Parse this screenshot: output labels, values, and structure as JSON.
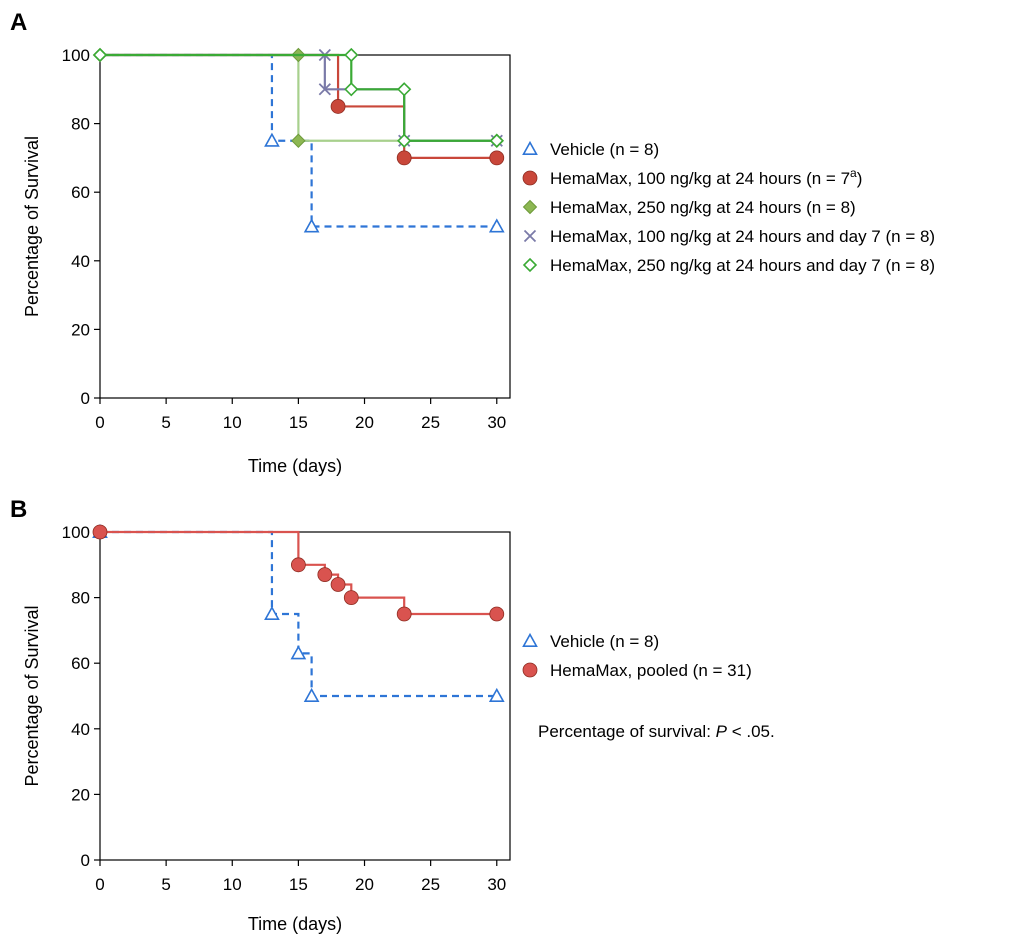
{
  "figure": {
    "colors": {
      "vehicle": "#2e75d6",
      "hm100_24": "#c9473a",
      "hm250_24": "#a8d08d",
      "hm100_24_d7": "#7a7aa8",
      "hm250_24_d7": "#3aaa35",
      "hm_pooled": "#d9534f",
      "diamond_fill_green": "#8db753"
    },
    "note": {
      "prefix": "Percentage of survival: ",
      "italic": "P",
      "suffix": " < .05."
    }
  },
  "chart_data": [
    {
      "panel": "A",
      "type": "line",
      "subtype": "kaplan-meier step",
      "xlabel": "Time (days)",
      "ylabel": "Percentage of Survival",
      "xlim": [
        0,
        31
      ],
      "ylim": [
        0,
        100
      ],
      "xticks": [
        0,
        5,
        10,
        15,
        20,
        25,
        30
      ],
      "yticks": [
        0,
        20,
        40,
        60,
        80,
        100
      ],
      "x_tick_labels": [
        "0",
        "5",
        "10",
        "15",
        "20",
        "25",
        "30"
      ],
      "y_tick_labels": [
        "0",
        "20",
        "40",
        "60",
        "80",
        "100"
      ],
      "grid": false,
      "legend_position": "right",
      "series": [
        {
          "name": "Vehicle (n = 8)",
          "legend_sup": "",
          "key": "vehicle",
          "dashed": true,
          "marker": "triangle-open",
          "steps": [
            [
              0,
              100
            ],
            [
              13,
              75
            ],
            [
              16,
              50
            ],
            [
              30,
              50
            ]
          ],
          "markers": [
            [
              13,
              75
            ],
            [
              16,
              50
            ],
            [
              30,
              50
            ]
          ]
        },
        {
          "name": "HemaMax, 100 ng/kg at 24 hours (n = 7",
          "legend_sup": "a",
          "legend_suffix": ")",
          "key": "hm100_24",
          "dashed": false,
          "marker": "circle-filled",
          "steps": [
            [
              0,
              100
            ],
            [
              18,
              85
            ],
            [
              23,
              70
            ],
            [
              30,
              70
            ]
          ],
          "markers": [
            [
              18,
              85
            ],
            [
              23,
              70
            ],
            [
              30,
              70
            ]
          ]
        },
        {
          "name": "HemaMax, 250 ng/kg at 24 hours (n = 8)",
          "legend_sup": "",
          "key": "hm250_24",
          "dashed": false,
          "marker": "diamond-filled",
          "steps": [
            [
              0,
              100
            ],
            [
              15,
              75
            ],
            [
              30,
              75
            ]
          ],
          "markers": [
            [
              0,
              100
            ],
            [
              15,
              100
            ],
            [
              15,
              75
            ],
            [
              30,
              75
            ]
          ]
        },
        {
          "name": "HemaMax, 100 ng/kg at 24 hours and day 7 (n = 8)",
          "legend_sup": "",
          "key": "hm100_24_d7",
          "dashed": false,
          "marker": "x",
          "steps": [
            [
              0,
              100
            ],
            [
              17,
              90
            ],
            [
              23,
              75
            ],
            [
              30,
              75
            ]
          ],
          "markers": [
            [
              17,
              100
            ],
            [
              17,
              90
            ],
            [
              23,
              75
            ],
            [
              30,
              75
            ]
          ]
        },
        {
          "name": "HemaMax, 250 ng/kg at 24 hours and day 7 (n = 8)",
          "legend_sup": "",
          "key": "hm250_24_d7",
          "dashed": false,
          "marker": "diamond-open",
          "steps": [
            [
              0,
              100
            ],
            [
              19,
              90
            ],
            [
              23,
              75
            ],
            [
              30,
              75
            ]
          ],
          "markers": [
            [
              0,
              100
            ],
            [
              19,
              100
            ],
            [
              19,
              90
            ],
            [
              23,
              90
            ],
            [
              23,
              75
            ],
            [
              30,
              75
            ]
          ]
        }
      ]
    },
    {
      "panel": "B",
      "type": "line",
      "subtype": "kaplan-meier step",
      "xlabel": "Time (days)",
      "ylabel": "Percentage of Survival",
      "xlim": [
        0,
        31
      ],
      "ylim": [
        0,
        100
      ],
      "xticks": [
        0,
        5,
        10,
        15,
        20,
        25,
        30
      ],
      "yticks": [
        0,
        20,
        40,
        60,
        80,
        100
      ],
      "x_tick_labels": [
        "0",
        "5",
        "10",
        "15",
        "20",
        "25",
        "30"
      ],
      "y_tick_labels": [
        "0",
        "20",
        "40",
        "60",
        "80",
        "100"
      ],
      "grid": false,
      "legend_position": "right",
      "series": [
        {
          "name": "Vehicle (n = 8)",
          "legend_sup": "",
          "key": "vehicle",
          "dashed": true,
          "marker": "triangle-open",
          "steps": [
            [
              0,
              100
            ],
            [
              13,
              75
            ],
            [
              15,
              63
            ],
            [
              16,
              50
            ],
            [
              30,
              50
            ]
          ],
          "markers": [
            [
              0,
              100
            ],
            [
              13,
              75
            ],
            [
              15,
              63
            ],
            [
              16,
              50
            ],
            [
              30,
              50
            ]
          ]
        },
        {
          "name": "HemaMax, pooled (n = 31)",
          "legend_sup": "",
          "key": "hm_pooled",
          "dashed": false,
          "marker": "circle-filled",
          "steps": [
            [
              0,
              100
            ],
            [
              15,
              90
            ],
            [
              17,
              87
            ],
            [
              18,
              84
            ],
            [
              19,
              80
            ],
            [
              23,
              75
            ],
            [
              30,
              75
            ]
          ],
          "markers": [
            [
              0,
              100
            ],
            [
              15,
              90
            ],
            [
              17,
              87
            ],
            [
              18,
              84
            ],
            [
              19,
              80
            ],
            [
              23,
              75
            ],
            [
              30,
              75
            ]
          ]
        }
      ]
    }
  ]
}
